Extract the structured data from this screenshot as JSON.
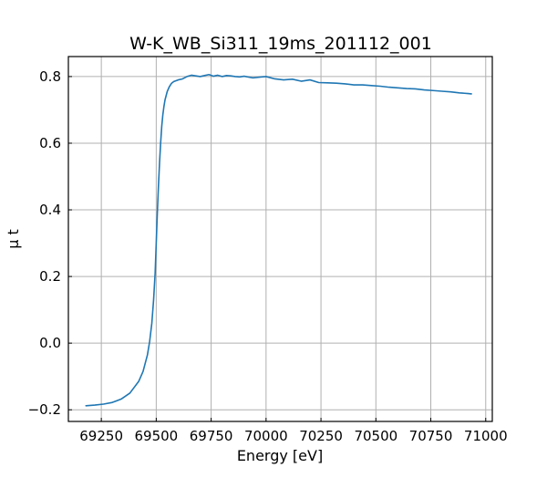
{
  "chart_data": {
    "type": "line",
    "title": "W-K_WB_Si311_19ms_201112_001",
    "xlabel": "Energy [eV]",
    "ylabel": "μ t",
    "xlim": [
      69100,
      71030
    ],
    "ylim": [
      -0.235,
      0.86
    ],
    "xticks": [
      69250,
      69500,
      69750,
      70000,
      70250,
      70500,
      70750,
      71000
    ],
    "yticks": [
      -0.2,
      0.0,
      0.2,
      0.4,
      0.6,
      0.8
    ],
    "grid": true,
    "tick_direction": "in",
    "series": [
      {
        "color": "#1f77b4",
        "x": [
          69180,
          69220,
          69260,
          69300,
          69340,
          69380,
          69420,
          69440,
          69460,
          69470,
          69480,
          69488,
          69495,
          69500,
          69505,
          69510,
          69515,
          69520,
          69525,
          69530,
          69535,
          69540,
          69550,
          69560,
          69570,
          69580,
          69600,
          69620,
          69640,
          69660,
          69680,
          69700,
          69720,
          69740,
          69760,
          69780,
          69800,
          69820,
          69840,
          69860,
          69880,
          69900,
          69940,
          69980,
          70000,
          70040,
          70080,
          70120,
          70160,
          70200,
          70240,
          70280,
          70320,
          70360,
          70400,
          70440,
          70480,
          70520,
          70560,
          70600,
          70640,
          70680,
          70720,
          70760,
          70800,
          70840,
          70880,
          70920,
          70935
        ],
        "y": [
          -0.188,
          -0.186,
          -0.183,
          -0.178,
          -0.168,
          -0.15,
          -0.115,
          -0.085,
          -0.035,
          0.005,
          0.06,
          0.13,
          0.21,
          0.3,
          0.39,
          0.47,
          0.54,
          0.6,
          0.65,
          0.685,
          0.71,
          0.73,
          0.755,
          0.77,
          0.78,
          0.785,
          0.79,
          0.793,
          0.8,
          0.804,
          0.802,
          0.8,
          0.803,
          0.806,
          0.801,
          0.804,
          0.8,
          0.803,
          0.802,
          0.8,
          0.799,
          0.801,
          0.796,
          0.799,
          0.8,
          0.793,
          0.79,
          0.792,
          0.786,
          0.79,
          0.782,
          0.781,
          0.78,
          0.778,
          0.775,
          0.775,
          0.773,
          0.771,
          0.768,
          0.766,
          0.764,
          0.763,
          0.76,
          0.758,
          0.756,
          0.754,
          0.751,
          0.749,
          0.748
        ]
      }
    ]
  }
}
